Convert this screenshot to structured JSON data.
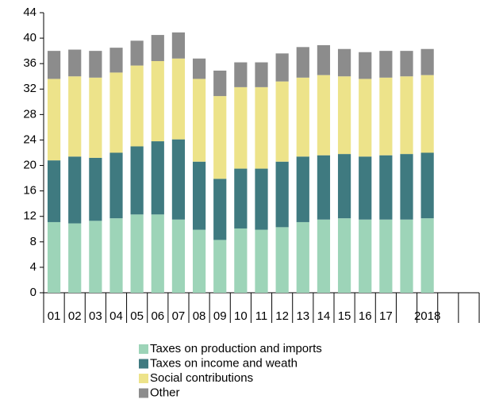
{
  "chart_data": {
    "type": "bar",
    "stacked": true,
    "categories": [
      "01",
      "02",
      "03",
      "04",
      "05",
      "06",
      "07",
      "08",
      "09",
      "10",
      "11",
      "12",
      "13",
      "14",
      "15",
      "16",
      "17",
      null,
      "2018",
      null,
      null
    ],
    "series": [
      {
        "name": "Taxes on production and imports",
        "color": "#9dd4b8",
        "values": [
          11.1,
          10.9,
          11.3,
          11.7,
          12.3,
          12.3,
          11.5,
          9.9,
          8.3,
          10.1,
          9.9,
          10.3,
          11.1,
          11.5,
          11.7,
          11.5,
          11.5,
          11.5,
          11.7,
          null,
          null
        ]
      },
      {
        "name": "Taxes on income and weath",
        "color": "#3f7a80",
        "values": [
          9.7,
          10.5,
          9.9,
          10.3,
          10.7,
          11.5,
          12.6,
          10.7,
          9.6,
          9.4,
          9.6,
          10.3,
          10.3,
          10.1,
          10.1,
          9.9,
          10.1,
          10.3,
          10.3,
          null,
          null
        ]
      },
      {
        "name": "Social contributions",
        "color": "#ede38a",
        "values": [
          12.8,
          12.6,
          12.6,
          12.6,
          12.7,
          12.6,
          12.7,
          13,
          13,
          12.8,
          12.8,
          12.6,
          12.4,
          12.6,
          12.2,
          12.2,
          12.2,
          12.2,
          12.2,
          null,
          null
        ]
      },
      {
        "name": "Other",
        "color": "#8c8c8c",
        "values": [
          4.4,
          4.2,
          4.2,
          3.9,
          3.9,
          4.1,
          4.1,
          3.2,
          4,
          3.9,
          3.9,
          4.4,
          4.8,
          4.7,
          4.3,
          4.2,
          4.2,
          4,
          4.1,
          null,
          null
        ]
      }
    ],
    "ylim": [
      0,
      44
    ],
    "yticks": [
      0,
      4,
      8,
      12,
      16,
      20,
      24,
      28,
      32,
      36,
      40,
      44
    ],
    "legend": "bottom"
  }
}
